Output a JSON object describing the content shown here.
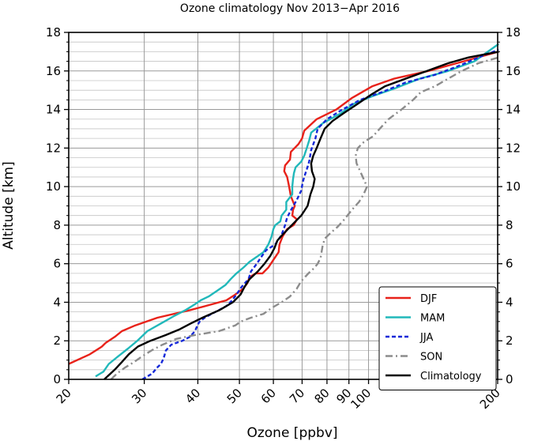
{
  "chart_data": {
    "type": "line",
    "title": "Ozone climatology Nov 2013−Apr 2016",
    "xlabel": "Ozone [ppbv]",
    "ylabel": "Altitude [km]",
    "x_scale": "log",
    "xlim": [
      20,
      200
    ],
    "ylim": [
      0,
      18
    ],
    "x_ticks": [
      20,
      30,
      40,
      50,
      60,
      70,
      80,
      90,
      100,
      200
    ],
    "x_tick_labels": [
      "20",
      "30",
      "40",
      "50",
      "60",
      "70",
      "80",
      "90",
      "100",
      "200"
    ],
    "y_ticks": [
      0,
      2,
      4,
      6,
      8,
      10,
      12,
      14,
      16,
      18
    ],
    "y_tick_labels": [
      "0",
      "2",
      "4",
      "6",
      "8",
      "10",
      "12",
      "14",
      "16",
      "18"
    ],
    "grid": true,
    "legend_position": "bottom-right",
    "series": [
      {
        "name": "DJF",
        "color": "#e8221a",
        "dash": "solid",
        "points": [
          [
            20.0,
            0.8
          ],
          [
            22.4,
            1.3
          ],
          [
            23.9,
            1.7
          ],
          [
            24.4,
            1.9
          ],
          [
            25.6,
            2.2
          ],
          [
            26.6,
            2.5
          ],
          [
            28.6,
            2.8
          ],
          [
            32.2,
            3.2
          ],
          [
            38.5,
            3.6
          ],
          [
            42.4,
            3.85
          ],
          [
            46.6,
            4.1
          ],
          [
            48.9,
            4.4
          ],
          [
            51.0,
            4.7
          ],
          [
            52.2,
            5.0
          ],
          [
            52.8,
            5.3
          ],
          [
            54.6,
            5.5
          ],
          [
            56.6,
            5.5
          ],
          [
            58.4,
            5.8
          ],
          [
            60.0,
            6.2
          ],
          [
            61.7,
            6.6
          ],
          [
            62.0,
            7.0
          ],
          [
            63.0,
            7.4
          ],
          [
            64.6,
            7.8
          ],
          [
            66.9,
            8.0
          ],
          [
            68.1,
            8.3
          ],
          [
            66.4,
            8.5
          ],
          [
            66.7,
            8.8
          ],
          [
            67.3,
            9.0
          ],
          [
            65.9,
            9.5
          ],
          [
            65.3,
            10.0
          ],
          [
            64.6,
            10.5
          ],
          [
            63.6,
            10.8
          ],
          [
            63.9,
            11.1
          ],
          [
            65.6,
            11.4
          ],
          [
            65.9,
            11.8
          ],
          [
            68.6,
            12.2
          ],
          [
            70.0,
            12.5
          ],
          [
            70.8,
            12.9
          ],
          [
            75.7,
            13.5
          ],
          [
            84.1,
            14.0
          ],
          [
            91.5,
            14.6
          ],
          [
            101.9,
            15.2
          ],
          [
            114.7,
            15.6
          ],
          [
            137.9,
            16.0
          ],
          [
            166.6,
            16.5
          ],
          [
            201.0,
            17.0
          ]
        ]
      },
      {
        "name": "MAM",
        "color": "#21b8ba",
        "dash": "solid",
        "points": [
          [
            23.1,
            0.15
          ],
          [
            24.1,
            0.4
          ],
          [
            24.8,
            0.8
          ],
          [
            26.1,
            1.2
          ],
          [
            27.5,
            1.6
          ],
          [
            28.9,
            2.0
          ],
          [
            30.5,
            2.5
          ],
          [
            32.8,
            2.9
          ],
          [
            35.3,
            3.3
          ],
          [
            37.5,
            3.6
          ],
          [
            39.4,
            3.9
          ],
          [
            40.6,
            4.1
          ],
          [
            42.4,
            4.3
          ],
          [
            44.4,
            4.6
          ],
          [
            46.4,
            4.9
          ],
          [
            47.7,
            5.2
          ],
          [
            49.2,
            5.5
          ],
          [
            51.1,
            5.8
          ],
          [
            52.8,
            6.1
          ],
          [
            56.9,
            6.6
          ],
          [
            58.4,
            7.0
          ],
          [
            59.4,
            7.4
          ],
          [
            60.0,
            7.8
          ],
          [
            60.6,
            8.0
          ],
          [
            62.3,
            8.2
          ],
          [
            62.7,
            8.5
          ],
          [
            64.3,
            8.8
          ],
          [
            64.3,
            9.2
          ],
          [
            66.4,
            9.6
          ],
          [
            66.4,
            10.0
          ],
          [
            66.7,
            10.4
          ],
          [
            67.0,
            10.7
          ],
          [
            67.6,
            11.0
          ],
          [
            69.7,
            11.3
          ],
          [
            70.8,
            11.6
          ],
          [
            71.8,
            12.0
          ],
          [
            72.7,
            12.4
          ],
          [
            73.5,
            12.8
          ],
          [
            78.4,
            13.3
          ],
          [
            86.2,
            13.8
          ],
          [
            92.5,
            14.3
          ],
          [
            102.3,
            14.7
          ],
          [
            115.3,
            15.1
          ],
          [
            131.7,
            15.6
          ],
          [
            153.3,
            16.0
          ],
          [
            176.5,
            16.5
          ],
          [
            201.0,
            17.4
          ]
        ]
      },
      {
        "name": "JJA",
        "color": "#1428d8",
        "dash": "5,3",
        "points": [
          [
            29.7,
            0.0
          ],
          [
            31.3,
            0.3
          ],
          [
            32.1,
            0.6
          ],
          [
            32.8,
            0.8
          ],
          [
            33.3,
            1.1
          ],
          [
            33.7,
            1.5
          ],
          [
            34.7,
            1.8
          ],
          [
            36.8,
            2.0
          ],
          [
            38.3,
            2.2
          ],
          [
            39.4,
            2.5
          ],
          [
            39.9,
            2.8
          ],
          [
            40.4,
            3.0
          ],
          [
            41.5,
            3.2
          ],
          [
            44.0,
            3.5
          ],
          [
            46.6,
            3.8
          ],
          [
            48.1,
            4.1
          ],
          [
            49.2,
            4.4
          ],
          [
            50.6,
            4.8
          ],
          [
            52.5,
            5.2
          ],
          [
            53.2,
            5.6
          ],
          [
            54.9,
            6.0
          ],
          [
            56.0,
            6.3
          ],
          [
            57.7,
            6.7
          ],
          [
            60.6,
            7.0
          ],
          [
            62.7,
            7.5
          ],
          [
            63.9,
            8.0
          ],
          [
            64.6,
            8.4
          ],
          [
            66.0,
            8.8
          ],
          [
            68.0,
            9.3
          ],
          [
            69.7,
            9.8
          ],
          [
            70.2,
            10.2
          ],
          [
            70.8,
            10.5
          ],
          [
            71.8,
            10.9
          ],
          [
            72.7,
            11.3
          ],
          [
            73.5,
            11.9
          ],
          [
            75.2,
            12.5
          ],
          [
            76.1,
            13.0
          ],
          [
            80.0,
            13.5
          ],
          [
            86.9,
            14.0
          ],
          [
            95.6,
            14.5
          ],
          [
            107.4,
            14.9
          ],
          [
            122.1,
            15.4
          ],
          [
            142.7,
            15.8
          ],
          [
            163.9,
            16.3
          ],
          [
            184.8,
            16.8
          ],
          [
            201.0,
            17.1
          ]
        ]
      },
      {
        "name": "SON",
        "color": "#8c8c8c",
        "dash": "9,4,2,4",
        "points": [
          [
            25.1,
            0.0
          ],
          [
            25.9,
            0.3
          ],
          [
            27.0,
            0.6
          ],
          [
            28.4,
            0.9
          ],
          [
            29.7,
            1.2
          ],
          [
            31.2,
            1.5
          ],
          [
            33.1,
            1.8
          ],
          [
            35.6,
            2.1
          ],
          [
            39.4,
            2.3
          ],
          [
            44.8,
            2.5
          ],
          [
            48.9,
            2.8
          ],
          [
            50.4,
            3.0
          ],
          [
            53.2,
            3.2
          ],
          [
            56.9,
            3.4
          ],
          [
            59.4,
            3.7
          ],
          [
            62.7,
            4.0
          ],
          [
            65.6,
            4.3
          ],
          [
            68.0,
            4.7
          ],
          [
            69.7,
            5.1
          ],
          [
            72.4,
            5.5
          ],
          [
            74.9,
            5.8
          ],
          [
            76.1,
            6.0
          ],
          [
            77.3,
            6.3
          ],
          [
            78.1,
            6.9
          ],
          [
            79.0,
            7.3
          ],
          [
            81.6,
            7.6
          ],
          [
            84.6,
            7.9
          ],
          [
            87.8,
            8.3
          ],
          [
            91.5,
            8.8
          ],
          [
            95.0,
            9.2
          ],
          [
            97.4,
            9.6
          ],
          [
            99.2,
            10.0
          ],
          [
            97.4,
            10.4
          ],
          [
            95.6,
            10.8
          ],
          [
            93.8,
            11.2
          ],
          [
            93.3,
            11.6
          ],
          [
            94.4,
            12.0
          ],
          [
            97.4,
            12.3
          ],
          [
            102.3,
            12.6
          ],
          [
            106.2,
            13.0
          ],
          [
            111.3,
            13.5
          ],
          [
            119.3,
            14.0
          ],
          [
            127.0,
            14.5
          ],
          [
            132.4,
            14.9
          ],
          [
            142.7,
            15.2
          ],
          [
            153.3,
            15.6
          ],
          [
            165.0,
            16.0
          ],
          [
            180.3,
            16.4
          ],
          [
            201.0,
            16.7
          ]
        ]
      },
      {
        "name": "Climatology",
        "color": "#000000",
        "dash": "solid",
        "points": [
          [
            24.2,
            0.0
          ],
          [
            25.6,
            0.5
          ],
          [
            26.6,
            0.9
          ],
          [
            27.6,
            1.3
          ],
          [
            29.0,
            1.7
          ],
          [
            31.0,
            2.0
          ],
          [
            33.7,
            2.3
          ],
          [
            36.3,
            2.6
          ],
          [
            38.5,
            2.9
          ],
          [
            41.0,
            3.2
          ],
          [
            45.0,
            3.6
          ],
          [
            48.3,
            4.0
          ],
          [
            50.3,
            4.4
          ],
          [
            51.4,
            4.8
          ],
          [
            52.8,
            5.2
          ],
          [
            55.2,
            5.6
          ],
          [
            57.2,
            6.0
          ],
          [
            59.0,
            6.4
          ],
          [
            60.3,
            6.8
          ],
          [
            61.3,
            7.2
          ],
          [
            63.0,
            7.5
          ],
          [
            64.9,
            7.8
          ],
          [
            67.6,
            8.2
          ],
          [
            69.7,
            8.5
          ],
          [
            72.1,
            9.0
          ],
          [
            73.2,
            9.6
          ],
          [
            74.3,
            10.0
          ],
          [
            74.9,
            10.4
          ],
          [
            73.8,
            10.8
          ],
          [
            73.5,
            11.2
          ],
          [
            74.3,
            11.6
          ],
          [
            75.7,
            12.0
          ],
          [
            77.3,
            12.5
          ],
          [
            79.0,
            13.0
          ],
          [
            82.4,
            13.4
          ],
          [
            87.4,
            13.8
          ],
          [
            94.4,
            14.3
          ],
          [
            101.9,
            14.8
          ],
          [
            109.1,
            15.2
          ],
          [
            122.1,
            15.6
          ],
          [
            136.9,
            16.0
          ],
          [
            153.3,
            16.4
          ],
          [
            171.0,
            16.7
          ],
          [
            201.0,
            17.0
          ]
        ]
      }
    ]
  }
}
